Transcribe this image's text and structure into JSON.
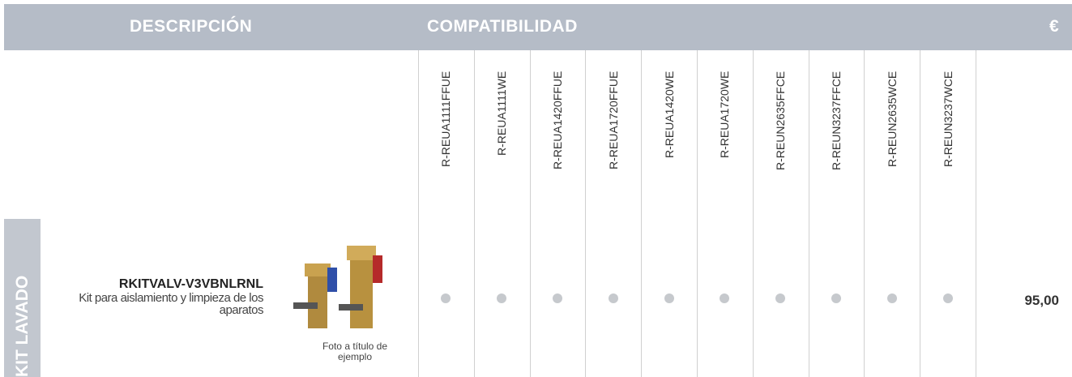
{
  "header": {
    "description": "DESCRIPCIÓN",
    "compatibility": "COMPATIBILIDAD",
    "price": "€"
  },
  "section": "KIT LAVADO",
  "product": {
    "code": "RKITVALV-V3VBNLRNL",
    "description": "Kit para aislamiento y limpieza de los aparatos",
    "photo_note": "Foto a título de ejemplo",
    "price": "95,00"
  },
  "models": [
    "R-REUA1111FFUE",
    "R-REUA1111WE",
    "R-REUA1420FFUE",
    "R-REUA1720FFUE",
    "R-REUA1420WE",
    "R-REUA1720WE",
    "R-REUN2635FFCE",
    "R-REUN3237FFCE",
    "R-REUN2635WCE",
    "R-REUN3237WCE"
  ]
}
